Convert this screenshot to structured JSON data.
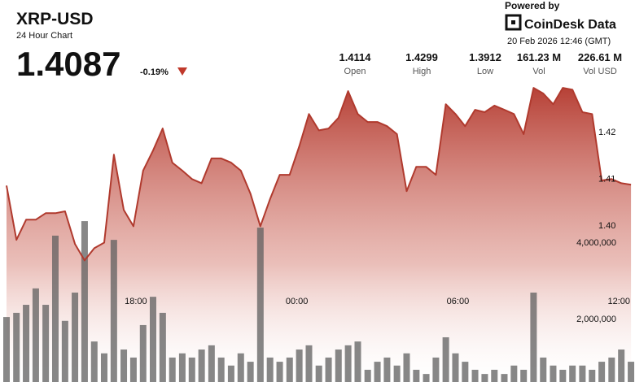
{
  "header": {
    "symbol": "XRP-USD",
    "subtitle": "24 Hour Chart",
    "price": "1.4087",
    "change": "-0.19%",
    "powered_by": "Powered by",
    "brand": "CoinDesk Data",
    "timestamp": "20 Feb 2026 12:46 (GMT)",
    "stats": [
      {
        "value": "1.4114",
        "label": "Open"
      },
      {
        "value": "1.4299",
        "label": "High"
      },
      {
        "value": "1.3912",
        "label": "Low"
      },
      {
        "value": "161.23 M",
        "label": "Vol"
      },
      {
        "value": "226.61 M",
        "label": "Vol USD"
      }
    ]
  },
  "chart_data": {
    "type": "combo",
    "x": [
      13.18,
      13.55,
      13.91,
      14.27,
      14.64,
      15.0,
      15.36,
      15.73,
      16.09,
      16.45,
      16.82,
      17.18,
      17.55,
      17.91,
      18.27,
      18.64,
      19.0,
      19.36,
      19.73,
      20.09,
      20.45,
      20.82,
      21.18,
      21.55,
      21.91,
      22.27,
      22.64,
      23.0,
      23.36,
      23.73,
      24.09,
      24.45,
      24.82,
      25.18,
      25.55,
      25.91,
      26.27,
      26.64,
      27.0,
      27.36,
      27.73,
      28.09,
      28.45,
      28.82,
      29.18,
      29.55,
      29.91,
      30.27,
      30.64,
      31.0,
      31.36,
      31.73,
      32.09,
      32.45,
      32.82,
      33.18,
      33.55,
      33.91,
      34.27,
      34.64,
      35.0,
      35.36,
      35.73,
      36.09,
      36.45
    ],
    "xlim": [
      13.18,
      36.6
    ],
    "xticks": [
      {
        "value": 18,
        "label": "18:00"
      },
      {
        "value": 24,
        "label": "00:00"
      },
      {
        "value": 30,
        "label": "06:00"
      },
      {
        "value": 36,
        "label": "12:00"
      }
    ],
    "ylim": [
      1.3665,
      1.4308
    ],
    "yticks": [
      {
        "value": 1.4,
        "label": "1.40"
      },
      1.41,
      1.42
    ],
    "y2lim": [
      340000,
      8210000
    ],
    "y2ticks": [
      {
        "value": 2000000,
        "label": "2,000,000"
      },
      {
        "value": 4000000,
        "label": "4,000,000"
      }
    ],
    "series": [
      {
        "type": "line",
        "color": "#b03a2e",
        "values": [
          1.4085,
          1.3969,
          1.4012,
          1.4012,
          1.4026,
          1.4026,
          1.403,
          1.396,
          1.3925,
          1.3951,
          1.3963,
          1.4151,
          1.4033,
          1.3998,
          1.4117,
          1.416,
          1.4207,
          1.4134,
          1.4117,
          1.4099,
          1.409,
          1.4143,
          1.4143,
          1.4134,
          1.4117,
          1.4068,
          1.3998,
          1.4056,
          1.4108,
          1.4108,
          1.4169,
          1.4238,
          1.4203,
          1.4207,
          1.423,
          1.4287,
          1.4238,
          1.4221,
          1.4221,
          1.4212,
          1.4195,
          1.4073,
          1.4125,
          1.4125,
          1.4108,
          1.4259,
          1.4238,
          1.4212,
          1.4247,
          1.4242,
          1.4256,
          1.4247,
          1.4238,
          1.4195,
          1.4294,
          1.4282,
          1.4259,
          1.4294,
          1.429,
          1.4242,
          1.4238,
          1.4096,
          1.4099,
          1.409,
          1.4087
        ]
      },
      {
        "type": "bar",
        "axis": "y2",
        "color": "#5f5f5f",
        "values": [
          2040000,
          2150000,
          2360000,
          2790000,
          2360000,
          4170000,
          1940000,
          2680000,
          4550000,
          1400000,
          1090000,
          4060000,
          1190000,
          980000,
          1830000,
          2570000,
          2150000,
          980000,
          1090000,
          980000,
          1190000,
          1300000,
          980000,
          770000,
          1090000,
          870000,
          4380000,
          980000,
          870000,
          980000,
          1190000,
          1300000,
          770000,
          980000,
          1190000,
          1300000,
          1400000,
          660000,
          870000,
          980000,
          770000,
          1090000,
          660000,
          550000,
          980000,
          1510000,
          1090000,
          870000,
          660000,
          550000,
          660000,
          550000,
          770000,
          660000,
          2680000,
          980000,
          770000,
          660000,
          770000,
          770000,
          660000,
          870000,
          980000,
          1190000,
          870000
        ]
      }
    ]
  }
}
